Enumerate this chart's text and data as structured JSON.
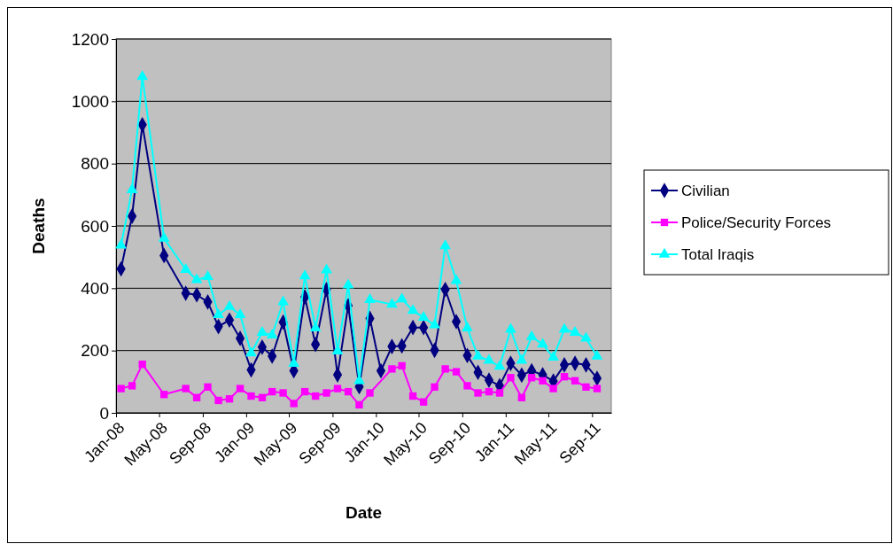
{
  "chart_data": {
    "type": "line",
    "xlabel": "Date",
    "ylabel": "Deaths",
    "x": [
      "2008-01-15",
      "2008-02-15",
      "2008-03-15",
      "2008-05-15",
      "2008-07-15",
      "2008-08-15",
      "2008-09-15",
      "2008-10-15",
      "2008-11-15",
      "2008-12-15",
      "2009-01-15",
      "2009-02-15",
      "2009-03-15",
      "2009-04-15",
      "2009-05-15",
      "2009-06-15",
      "2009-07-15",
      "2009-08-15",
      "2009-09-15",
      "2009-10-15",
      "2009-11-15",
      "2009-12-15",
      "2010-01-15",
      "2010-02-15",
      "2010-03-15",
      "2010-04-15",
      "2010-05-15",
      "2010-06-15",
      "2010-07-15",
      "2010-08-15",
      "2010-09-15",
      "2010-10-15",
      "2010-11-15",
      "2010-12-15",
      "2011-01-15",
      "2011-02-15",
      "2011-03-15",
      "2011-04-15",
      "2011-05-15",
      "2011-06-15",
      "2011-07-15",
      "2011-08-15",
      "2011-09-15"
    ],
    "series": [
      {
        "name": "Civilian",
        "color": "#000080",
        "marker": "diamond",
        "values": [
          462,
          631,
          925,
          505,
          384,
          379,
          356,
          277,
          298,
          239,
          138,
          211,
          182,
          291,
          135,
          372,
          220,
          396,
          122,
          344,
          84,
          303,
          135,
          213,
          215,
          274,
          274,
          201,
          396,
          293,
          184,
          130,
          105,
          87,
          159,
          121,
          135,
          122,
          102,
          154,
          159,
          154,
          111
        ]
      },
      {
        "name": "Police/Security Forces",
        "color": "#ff00ff",
        "marker": "square",
        "x": [
          "2008-01-15",
          "2008-02-15",
          "2008-03-15",
          "2008-05-15",
          "2008-07-15",
          "2008-08-15",
          "2008-09-15",
          "2008-10-15",
          "2008-11-15",
          "2008-12-15",
          "2009-01-15",
          "2009-02-15",
          "2009-03-15",
          "2009-04-15",
          "2009-05-15",
          "2009-06-15",
          "2009-07-15",
          "2009-08-15",
          "2009-09-15",
          "2009-10-15",
          "2009-11-15",
          "2009-12-15",
          "2010-02-15",
          "2010-03-15",
          "2010-04-15",
          "2010-05-15",
          "2010-06-15",
          "2010-07-15",
          "2010-08-15",
          "2010-09-15",
          "2010-10-15",
          "2010-11-15",
          "2010-12-15",
          "2011-01-15",
          "2011-02-15",
          "2011-03-15",
          "2011-04-15",
          "2011-05-15",
          "2011-06-15",
          "2011-07-15",
          "2011-08-15",
          "2011-09-15"
        ],
        "values": [
          78,
          87,
          156,
          59,
          78,
          49,
          83,
          40,
          45,
          78,
          54,
          49,
          68,
          64,
          30,
          68,
          54,
          64,
          78,
          68,
          26,
          64,
          141,
          151,
          54,
          35,
          83,
          141,
          132,
          87,
          64,
          68,
          64,
          113,
          49,
          113,
          103,
          78,
          116,
          103,
          83,
          78
        ]
      },
      {
        "name": "Total Iraqis",
        "color": "#00ffff",
        "marker": "triangle",
        "x": [
          "2008-01-15",
          "2008-02-15",
          "2008-03-15",
          "2008-05-15",
          "2008-07-15",
          "2008-08-15",
          "2008-09-15",
          "2008-10-15",
          "2008-11-15",
          "2008-12-15",
          "2009-01-15",
          "2009-02-15",
          "2009-03-15",
          "2009-04-15",
          "2009-05-15",
          "2009-06-15",
          "2009-07-15",
          "2009-08-15",
          "2009-09-15",
          "2009-10-15",
          "2009-11-15",
          "2009-12-15",
          "2010-02-15",
          "2010-03-15",
          "2010-04-15",
          "2010-05-15",
          "2010-06-15",
          "2010-07-15",
          "2010-08-15",
          "2010-09-15",
          "2010-10-15",
          "2010-11-15",
          "2010-12-15",
          "2011-01-15",
          "2011-02-15",
          "2011-03-15",
          "2011-04-15",
          "2011-05-15",
          "2011-06-15",
          "2011-07-15",
          "2011-08-15",
          "2011-09-15"
        ],
        "values": [
          538,
          716,
          1079,
          560,
          460,
          427,
          437,
          315,
          341,
          315,
          192,
          258,
          249,
          356,
          158,
          439,
          272,
          458,
          198,
          410,
          103,
          363,
          348,
          365,
          328,
          306,
          282,
          536,
          424,
          272,
          182,
          168,
          149,
          268,
          168,
          244,
          220,
          178,
          268,
          258,
          239,
          182
        ]
      }
    ],
    "xlim": [
      "2008-01-01",
      "2011-10-25"
    ],
    "xticks": [
      {
        "value": "2008-01-01",
        "label": "Jan-08"
      },
      {
        "value": "2008-05-01",
        "label": "May-08"
      },
      {
        "value": "2008-09-01",
        "label": "Sep-08"
      },
      {
        "value": "2009-01-01",
        "label": "Jan-09"
      },
      {
        "value": "2009-05-01",
        "label": "May-09"
      },
      {
        "value": "2009-09-01",
        "label": "Sep-09"
      },
      {
        "value": "2010-01-01",
        "label": "Jan-10"
      },
      {
        "value": "2010-05-01",
        "label": "May-10"
      },
      {
        "value": "2010-09-01",
        "label": "Sep-10"
      },
      {
        "value": "2011-01-01",
        "label": "Jan-11"
      },
      {
        "value": "2011-05-01",
        "label": "May-11"
      },
      {
        "value": "2011-09-01",
        "label": "Sep-11"
      }
    ],
    "ylim": [
      0,
      1200
    ],
    "yticks": [
      0,
      200,
      400,
      600,
      800,
      1000,
      1200
    ],
    "grid": "y",
    "legend": "right",
    "line_style": "solid"
  }
}
